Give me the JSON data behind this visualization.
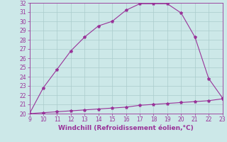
{
  "x": [
    9,
    10,
    11,
    12,
    13,
    14,
    15,
    16,
    17,
    18,
    19,
    20,
    21,
    22,
    23
  ],
  "y_upper": [
    20.0,
    22.8,
    24.8,
    26.8,
    28.3,
    29.5,
    30.0,
    31.2,
    31.9,
    31.9,
    31.9,
    30.9,
    28.3,
    23.8,
    21.7
  ],
  "y_lower": [
    20.0,
    20.1,
    20.2,
    20.3,
    20.4,
    20.5,
    20.6,
    20.7,
    20.9,
    21.0,
    21.1,
    21.2,
    21.3,
    21.4,
    21.6
  ],
  "line_color": "#993399",
  "marker": "*",
  "marker_size": 3,
  "bg_color": "#cce8e8",
  "grid_color": "#aacccc",
  "xlabel": "Windchill (Refroidissement éolien,°C)",
  "xlim": [
    9,
    23
  ],
  "ylim": [
    20,
    32
  ],
  "xticks": [
    9,
    10,
    11,
    12,
    13,
    14,
    15,
    16,
    17,
    18,
    19,
    20,
    21,
    22,
    23
  ],
  "yticks": [
    20,
    21,
    22,
    23,
    24,
    25,
    26,
    27,
    28,
    29,
    30,
    31,
    32
  ],
  "tick_fontsize": 5.5,
  "xlabel_fontsize": 6.5,
  "xlabel_color": "#993399",
  "tick_color": "#993399",
  "spine_color": "#993399",
  "line_width": 0.8
}
